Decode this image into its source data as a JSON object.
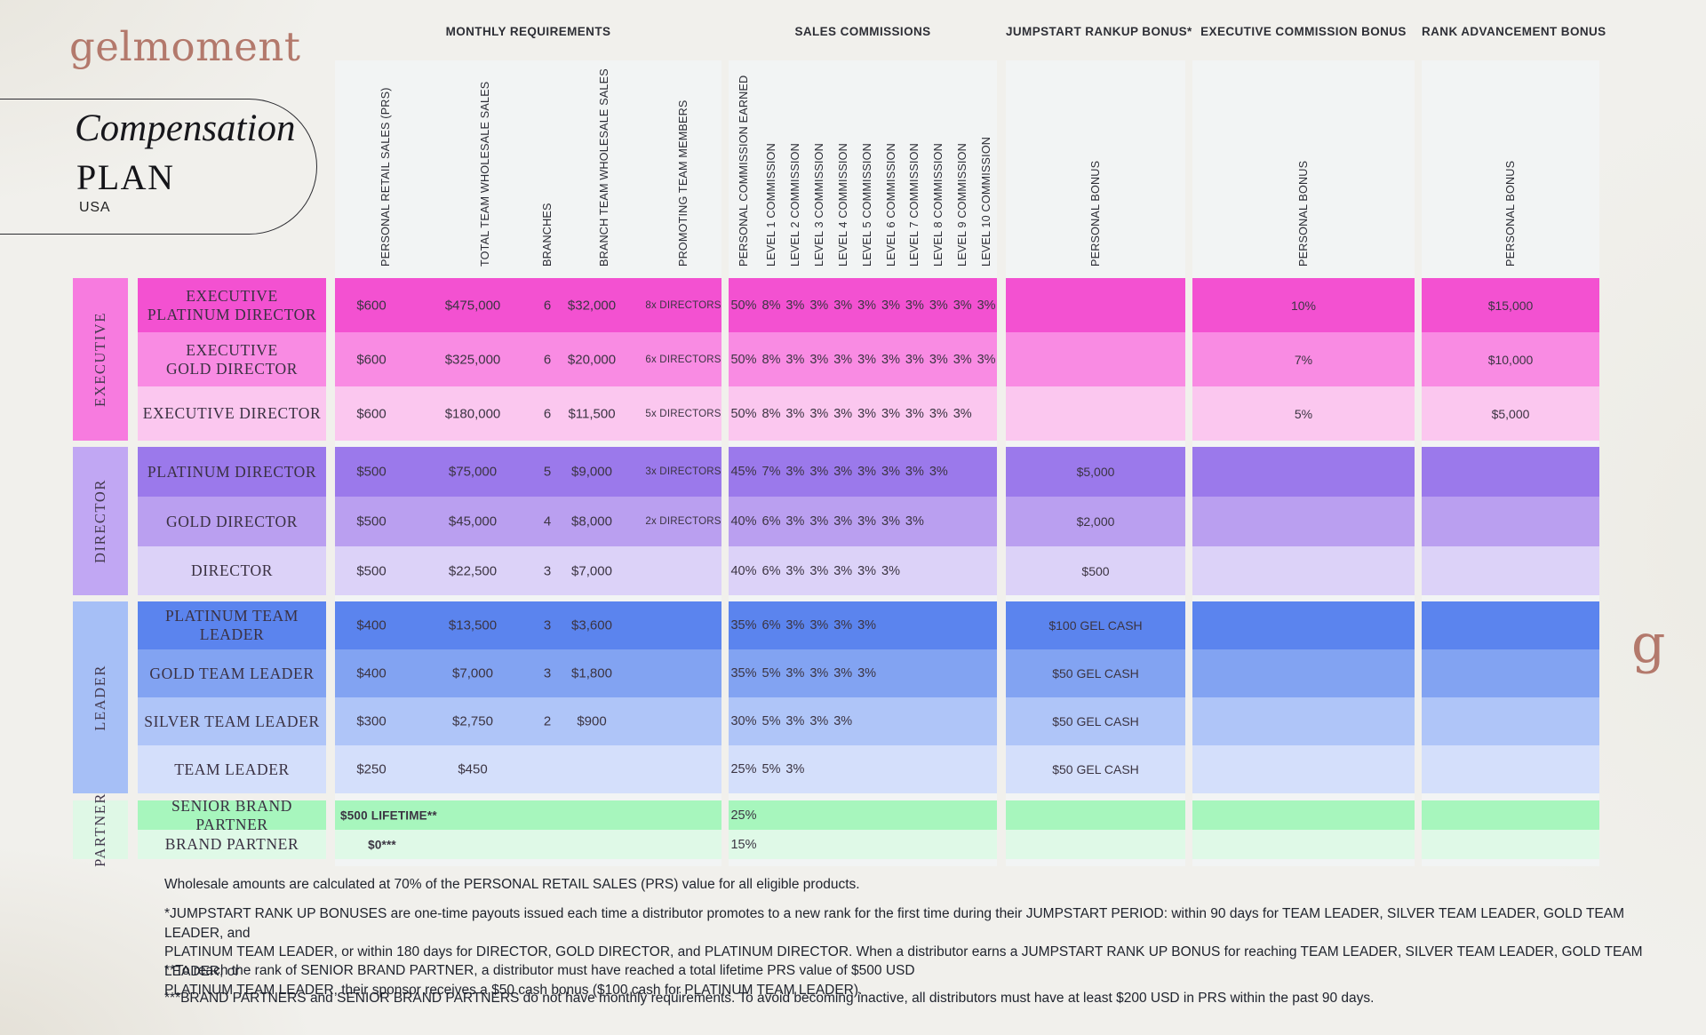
{
  "brand": {
    "logo_text": "gelmoment",
    "monogram": "g",
    "brand_color": "#b3796c"
  },
  "title_box": {
    "line1": "Compensation",
    "line2": "PLAN",
    "line3": "USA"
  },
  "sections": [
    {
      "id": "mr",
      "title": "MONTHLY REQUIREMENTS",
      "column_labels": [
        "PERSONAL RETAIL SALES (PRS)",
        "TOTAL TEAM WHOLESALE SALES",
        "BRANCHES",
        "BRANCH TEAM WHOLESALE SALES",
        "PROMOTING TEAM MEMBERS"
      ]
    },
    {
      "id": "sc",
      "title": "SALES COMMISSIONS",
      "column_labels": [
        "PERSONAL COMMISSION EARNED",
        "LEVEL 1 COMMISSION",
        "LEVEL 2 COMMISSION",
        "LEVEL 3 COMMISSION",
        "LEVEL 4 COMMISSION",
        "LEVEL 5 COMMISSION",
        "LEVEL 6 COMMISSION",
        "LEVEL 7 COMMISSION",
        "LEVEL 8 COMMISSION",
        "LEVEL 9 COMMISSION",
        "LEVEL 10 COMMISSION"
      ]
    },
    {
      "id": "js",
      "title": "JUMPSTART RANKUP BONUS*",
      "column_labels": [
        "PERSONAL BONUS"
      ]
    },
    {
      "id": "ec",
      "title": "EXECUTIVE COMMISSION BONUS",
      "column_labels": [
        "PERSONAL BONUS"
      ]
    },
    {
      "id": "ra",
      "title": "RANK ADVANCEMENT BONUS",
      "column_labels": [
        "PERSONAL BONUS"
      ]
    }
  ],
  "groups": [
    {
      "label": "EXECUTIVE",
      "color": "#f77bdf"
    },
    {
      "label": "DIRECTOR",
      "color": "#c1a7f3"
    },
    {
      "label": "LEADER",
      "color": "#a6bff6"
    },
    {
      "label": "PARTNER",
      "color": "#dff8e6"
    }
  ],
  "rows": [
    {
      "rank": [
        "EXECUTIVE",
        "PLATINUM DIRECTOR"
      ],
      "color": "#f351d1",
      "monthly": {
        "prs": "$600",
        "total_team": "$475,000",
        "branches": "6",
        "branch_team": "$32,000",
        "promoting": "8x DIRECTORS"
      },
      "commissions": {
        "personal": "50%",
        "levels": [
          "8%",
          "3%",
          "3%",
          "3%",
          "3%",
          "3%",
          "3%",
          "3%",
          "3%",
          "3%"
        ]
      },
      "jumpstart": "",
      "executive_bonus": "10%",
      "rank_advancement": "$15,000"
    },
    {
      "rank": [
        "EXECUTIVE",
        "GOLD DIRECTOR"
      ],
      "color": "#f98be3",
      "monthly": {
        "prs": "$600",
        "total_team": "$325,000",
        "branches": "6",
        "branch_team": "$20,000",
        "promoting": "6x DIRECTORS"
      },
      "commissions": {
        "personal": "50%",
        "levels": [
          "8%",
          "3%",
          "3%",
          "3%",
          "3%",
          "3%",
          "3%",
          "3%",
          "3%",
          "3%"
        ]
      },
      "jumpstart": "",
      "executive_bonus": "7%",
      "rank_advancement": "$10,000"
    },
    {
      "rank": [
        "EXECUTIVE DIRECTOR"
      ],
      "color": "#fbc7ef",
      "monthly": {
        "prs": "$600",
        "total_team": "$180,000",
        "branches": "6",
        "branch_team": "$11,500",
        "promoting": "5x DIRECTORS"
      },
      "commissions": {
        "personal": "50%",
        "levels": [
          "8%",
          "3%",
          "3%",
          "3%",
          "3%",
          "3%",
          "3%",
          "3%",
          "3%",
          ""
        ]
      },
      "jumpstart": "",
      "executive_bonus": "5%",
      "rank_advancement": "$5,000"
    },
    {
      "rank": [
        "PLATINUM DIRECTOR"
      ],
      "color": "#9b79eb",
      "monthly": {
        "prs": "$500",
        "total_team": "$75,000",
        "branches": "5",
        "branch_team": "$9,000",
        "promoting": "3x DIRECTORS"
      },
      "commissions": {
        "personal": "45%",
        "levels": [
          "7%",
          "3%",
          "3%",
          "3%",
          "3%",
          "3%",
          "3%",
          "3%",
          "",
          ""
        ]
      },
      "jumpstart": "$5,000",
      "executive_bonus": "",
      "rank_advancement": ""
    },
    {
      "rank": [
        "GOLD DIRECTOR"
      ],
      "color": "#ba9ff0",
      "monthly": {
        "prs": "$500",
        "total_team": "$45,000",
        "branches": "4",
        "branch_team": "$8,000",
        "promoting": "2x DIRECTORS"
      },
      "commissions": {
        "personal": "40%",
        "levels": [
          "6%",
          "3%",
          "3%",
          "3%",
          "3%",
          "3%",
          "3%",
          "",
          "",
          ""
        ]
      },
      "jumpstart": "$2,000",
      "executive_bonus": "",
      "rank_advancement": ""
    },
    {
      "rank": [
        "DIRECTOR"
      ],
      "color": "#dcd2f8",
      "monthly": {
        "prs": "$500",
        "total_team": "$22,500",
        "branches": "3",
        "branch_team": "$7,000",
        "promoting": ""
      },
      "commissions": {
        "personal": "40%",
        "levels": [
          "6%",
          "3%",
          "3%",
          "3%",
          "3%",
          "3%",
          "",
          "",
          "",
          ""
        ]
      },
      "jumpstart": "$500",
      "executive_bonus": "",
      "rank_advancement": ""
    },
    {
      "rank": [
        "PLATINUM TEAM LEADER"
      ],
      "color": "#5b84ee",
      "monthly": {
        "prs": "$400",
        "total_team": "$13,500",
        "branches": "3",
        "branch_team": "$3,600",
        "promoting": ""
      },
      "commissions": {
        "personal": "35%",
        "levels": [
          "6%",
          "3%",
          "3%",
          "3%",
          "3%",
          "",
          "",
          "",
          "",
          ""
        ]
      },
      "jumpstart": "$100 GEL CASH",
      "executive_bonus": "",
      "rank_advancement": ""
    },
    {
      "rank": [
        "GOLD TEAM LEADER"
      ],
      "color": "#82a3f2",
      "monthly": {
        "prs": "$400",
        "total_team": "$7,000",
        "branches": "3",
        "branch_team": "$1,800",
        "promoting": ""
      },
      "commissions": {
        "personal": "35%",
        "levels": [
          "5%",
          "3%",
          "3%",
          "3%",
          "3%",
          "",
          "",
          "",
          "",
          ""
        ]
      },
      "jumpstart": "$50 GEL CASH",
      "executive_bonus": "",
      "rank_advancement": ""
    },
    {
      "rank": [
        "SILVER TEAM LEADER"
      ],
      "color": "#afc5f8",
      "monthly": {
        "prs": "$300",
        "total_team": "$2,750",
        "branches": "2",
        "branch_team": "$900",
        "promoting": ""
      },
      "commissions": {
        "personal": "30%",
        "levels": [
          "5%",
          "3%",
          "3%",
          "3%",
          "",
          "",
          "",
          "",
          "",
          ""
        ]
      },
      "jumpstart": "$50 GEL CASH",
      "executive_bonus": "",
      "rank_advancement": ""
    },
    {
      "rank": [
        "TEAM LEADER"
      ],
      "color": "#d4dffb",
      "monthly": {
        "prs": "$250",
        "total_team": "$450",
        "branches": "",
        "branch_team": "",
        "promoting": ""
      },
      "commissions": {
        "personal": "25%",
        "levels": [
          "5%",
          "3%",
          "",
          "",
          "",
          "",
          "",
          "",
          "",
          ""
        ]
      },
      "jumpstart": "$50 GEL CASH",
      "executive_bonus": "",
      "rank_advancement": ""
    },
    {
      "rank": [
        "SENIOR BRAND PARTNER"
      ],
      "color": "#a7f6bd",
      "monthly_special": {
        "text": "$500 LIFETIME**",
        "align": "left"
      },
      "commissions": {
        "personal": "25%",
        "levels": [
          "",
          "",
          "",
          "",
          "",
          "",
          "",
          "",
          "",
          ""
        ]
      },
      "jumpstart": "",
      "executive_bonus": "",
      "rank_advancement": ""
    },
    {
      "rank": [
        "BRAND PARTNER"
      ],
      "color": "#dff9e7",
      "monthly_special": {
        "text": "$0***",
        "align": "prs"
      },
      "commissions": {
        "personal": "15%",
        "levels": [
          "",
          "",
          "",
          "",
          "",
          "",
          "",
          "",
          "",
          ""
        ]
      },
      "jumpstart": "",
      "executive_bonus": "",
      "rank_advancement": ""
    }
  ],
  "footnotes": [
    "Wholesale amounts are calculated at 70% of the PERSONAL RETAIL SALES (PRS) value for all eligible products.",
    [
      "*JUMPSTART RANK UP BONUSES are one-time payouts issued each time a distributor promotes to a new rank for the first time during their JUMPSTART PERIOD: within 90 days for TEAM LEADER, SILVER TEAM LEADER, GOLD TEAM LEADER, and",
      "PLATINUM TEAM LEADER, or within 180 days for DIRECTOR, GOLD DIRECTOR, and PLATINUM DIRECTOR. When a distributor earns a JUMPSTART RANK UP BONUS for reaching TEAM LEADER, SILVER TEAM LEADER, GOLD TEAM LEADER, or",
      "PLATINUM TEAM LEADER, their sponsor receives a $50 cash bonus ($100 cash for PLATINUM TEAM LEADER)."
    ],
    "**To reach the rank of SENIOR BRAND PARTNER, a distributor must have reached a total lifetime PRS value of $500 USD",
    "***BRAND PARTNERS and SENIOR BRAND PARTNERS do not have monthly requirements. To avoid becoming inactive, all distributors must have at least $200 USD in PRS within the past 90 days."
  ]
}
